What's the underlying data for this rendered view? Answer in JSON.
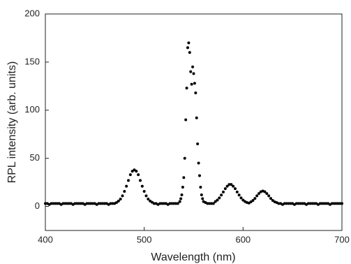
{
  "chart_data": {
    "type": "scatter",
    "x_label": "Wavelength (nm)",
    "y_label": "RPL intensity (arb. units)",
    "xlim": [
      400,
      700
    ],
    "xticks": [
      400,
      500,
      600,
      700
    ],
    "ylim": [
      -25,
      200
    ],
    "yticks": [
      0,
      50,
      100,
      150,
      200
    ],
    "color": "#000000",
    "x": [
      400,
      402,
      404,
      406,
      408,
      410,
      412,
      414,
      416,
      418,
      420,
      422,
      424,
      426,
      428,
      430,
      432,
      434,
      436,
      438,
      440,
      442,
      444,
      446,
      448,
      450,
      452,
      454,
      456,
      458,
      460,
      462,
      464,
      466,
      468,
      470,
      472,
      474,
      476,
      478,
      480,
      482,
      484,
      486,
      488,
      490,
      492,
      494,
      496,
      498,
      500,
      502,
      504,
      506,
      508,
      510,
      512,
      514,
      516,
      518,
      520,
      522,
      524,
      526,
      528,
      530,
      532,
      534,
      536,
      537,
      538,
      539,
      540,
      541,
      542,
      543,
      544,
      545,
      546,
      547,
      548,
      549,
      550,
      551,
      552,
      553,
      554,
      555,
      556,
      557,
      558,
      559,
      560,
      562,
      564,
      566,
      568,
      570,
      572,
      574,
      576,
      578,
      580,
      582,
      584,
      586,
      588,
      590,
      592,
      594,
      596,
      598,
      600,
      602,
      604,
      606,
      608,
      610,
      612,
      614,
      616,
      618,
      620,
      622,
      624,
      626,
      628,
      630,
      632,
      634,
      636,
      638,
      640,
      642,
      644,
      646,
      648,
      650,
      652,
      654,
      656,
      658,
      660,
      662,
      664,
      666,
      668,
      670,
      672,
      674,
      676,
      678,
      680,
      682,
      684,
      686,
      688,
      690,
      692,
      694,
      696,
      698,
      700
    ],
    "values": [
      3,
      3,
      2,
      3,
      3,
      3,
      3,
      3,
      2,
      3,
      3,
      3,
      3,
      3,
      2,
      3,
      3,
      3,
      3,
      3,
      2,
      3,
      3,
      3,
      3,
      3,
      2,
      3,
      3,
      3,
      3,
      3,
      2,
      3,
      3,
      3,
      4,
      5.6,
      7.7,
      11,
      15.6,
      21,
      27,
      33,
      36.6,
      38,
      36.6,
      33,
      27,
      21,
      15.6,
      11,
      7.7,
      5.6,
      4.3,
      3,
      3,
      2,
      3,
      3,
      3,
      3,
      2,
      3,
      3,
      3,
      3,
      3,
      5,
      8,
      12,
      20,
      30,
      50,
      90,
      123,
      165,
      170,
      160,
      140,
      127,
      145,
      138,
      128,
      118,
      92,
      65,
      45,
      32,
      20,
      12,
      8,
      5,
      4,
      3,
      3,
      3,
      3,
      5,
      6.6,
      8.8,
      11.8,
      15,
      18.5,
      21,
      22.8,
      22.8,
      21,
      18.5,
      15,
      11.8,
      8.8,
      6.6,
      5,
      4,
      3.5,
      4.8,
      6.2,
      8.3,
      11,
      13.4,
      15.3,
      16,
      15.3,
      13.4,
      11,
      8.3,
      6.2,
      4.8,
      4,
      3,
      3,
      2,
      3,
      3,
      3,
      3,
      3,
      2,
      3,
      3,
      3,
      3,
      3,
      2,
      3,
      3,
      3,
      3,
      3,
      2,
      3,
      3,
      3,
      3,
      3,
      2,
      3,
      3,
      3,
      3,
      3,
      3
    ]
  }
}
